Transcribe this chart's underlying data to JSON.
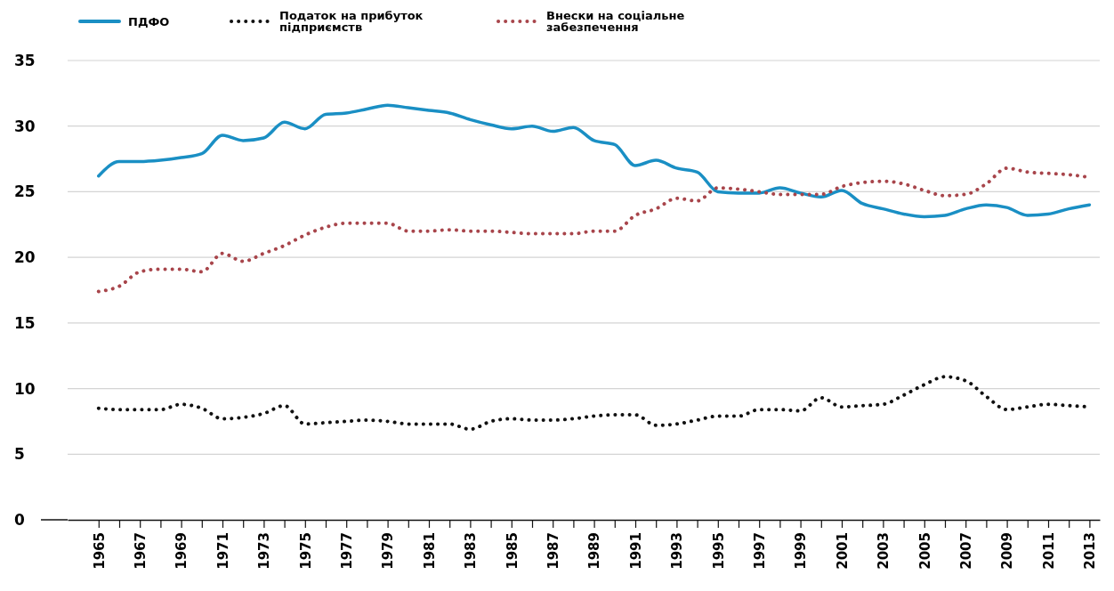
{
  "chart_data": {
    "type": "line",
    "legend": "top left",
    "grid": "y",
    "xlim": [
      1963.5,
      2013.5
    ],
    "xticks": [
      {
        "value": 1965,
        "label": "1965"
      },
      {
        "value": 1966,
        "label": null
      },
      {
        "value": 1967,
        "label": "1967"
      },
      {
        "value": 1968,
        "label": null
      },
      {
        "value": 1969,
        "label": "1969"
      },
      {
        "value": 1970,
        "label": null
      },
      {
        "value": 1971,
        "label": "1971"
      },
      {
        "value": 1972,
        "label": null
      },
      {
        "value": 1973,
        "label": "1973"
      },
      {
        "value": 1974,
        "label": null
      },
      {
        "value": 1975,
        "label": "1975"
      },
      {
        "value": 1976,
        "label": null
      },
      {
        "value": 1977,
        "label": "1977"
      },
      {
        "value": 1978,
        "label": null
      },
      {
        "value": 1979,
        "label": "1979"
      },
      {
        "value": 1980,
        "label": null
      },
      {
        "value": 1981,
        "label": "1981"
      },
      {
        "value": 1982,
        "label": null
      },
      {
        "value": 1983,
        "label": "1983"
      },
      {
        "value": 1984,
        "label": null
      },
      {
        "value": 1985,
        "label": "1985"
      },
      {
        "value": 1986,
        "label": null
      },
      {
        "value": 1987,
        "label": "1987"
      },
      {
        "value": 1988,
        "label": null
      },
      {
        "value": 1989,
        "label": "1989"
      },
      {
        "value": 1990,
        "label": null
      },
      {
        "value": 1991,
        "label": "1991"
      },
      {
        "value": 1992,
        "label": null
      },
      {
        "value": 1993,
        "label": "1993"
      },
      {
        "value": 1994,
        "label": null
      },
      {
        "value": 1995,
        "label": "1995"
      },
      {
        "value": 1996,
        "label": null
      },
      {
        "value": 1997,
        "label": "1997"
      },
      {
        "value": 1998,
        "label": null
      },
      {
        "value": 1999,
        "label": "1999"
      },
      {
        "value": 2000,
        "label": null
      },
      {
        "value": 2001,
        "label": "2001"
      },
      {
        "value": 2002,
        "label": null
      },
      {
        "value": 2003,
        "label": "2003"
      },
      {
        "value": 2004,
        "label": null
      },
      {
        "value": 2005,
        "label": "2005"
      },
      {
        "value": 2006,
        "label": null
      },
      {
        "value": 2007,
        "label": "2007"
      },
      {
        "value": 2008,
        "label": null
      },
      {
        "value": 2009,
        "label": "2009"
      },
      {
        "value": 2010,
        "label": null
      },
      {
        "value": 2011,
        "label": "2011"
      },
      {
        "value": 2012,
        "label": null
      },
      {
        "value": 2013,
        "label": "2013"
      }
    ],
    "ylim": [
      0,
      35
    ],
    "yticks": [
      0,
      5,
      10,
      15,
      20,
      25,
      30,
      35
    ],
    "x": [
      1965,
      1966,
      1967,
      1968,
      1969,
      1970,
      1971,
      1972,
      1973,
      1974,
      1975,
      1976,
      1977,
      1978,
      1979,
      1980,
      1981,
      1982,
      1983,
      1984,
      1985,
      1986,
      1987,
      1988,
      1989,
      1990,
      1991,
      1992,
      1993,
      1994,
      1995,
      1996,
      1997,
      1998,
      1999,
      2000,
      2001,
      2002,
      2003,
      2004,
      2005,
      2006,
      2007,
      2008,
      2009,
      2010,
      2011,
      2012,
      2013
    ],
    "series": [
      {
        "name": "ПДФО",
        "color": "#1a8fc4",
        "line_style": "solid",
        "values": [
          26.2,
          27.3,
          27.3,
          27.4,
          27.6,
          27.9,
          29.3,
          28.9,
          29.1,
          30.3,
          29.8,
          30.9,
          31.0,
          31.3,
          31.6,
          31.4,
          31.2,
          31.0,
          30.5,
          30.1,
          29.8,
          30.0,
          29.6,
          29.9,
          28.9,
          28.6,
          27.0,
          27.4,
          26.8,
          26.5,
          25.0,
          24.9,
          24.9,
          25.3,
          24.9,
          24.6,
          25.1,
          24.1,
          23.7,
          23.3,
          23.1,
          23.2,
          23.7,
          24.0,
          23.8,
          23.2,
          23.3,
          23.7,
          24.0
        ]
      },
      {
        "name": "Податок на прибуток підприємств",
        "color": "#111111",
        "line_style": "dotted",
        "values": [
          8.5,
          8.4,
          8.4,
          8.4,
          8.8,
          8.5,
          7.7,
          7.8,
          8.1,
          8.7,
          7.3,
          7.4,
          7.5,
          7.6,
          7.5,
          7.3,
          7.3,
          7.3,
          6.9,
          7.5,
          7.7,
          7.6,
          7.6,
          7.7,
          7.9,
          8.0,
          8.0,
          7.2,
          7.3,
          7.6,
          7.9,
          7.9,
          8.4,
          8.4,
          8.3,
          9.3,
          8.6,
          8.7,
          8.8,
          9.5,
          10.3,
          10.9,
          10.6,
          9.4,
          8.4,
          8.6,
          8.8,
          8.7,
          8.6
        ]
      },
      {
        "name": "Внески на соціальне забезпечення",
        "color": "#a8454b",
        "line_style": "dotted",
        "values": [
          17.4,
          17.8,
          18.9,
          19.1,
          19.1,
          18.9,
          20.3,
          19.7,
          20.3,
          20.9,
          21.7,
          22.3,
          22.6,
          22.6,
          22.6,
          22.0,
          22.0,
          22.1,
          22.0,
          22.0,
          21.9,
          21.8,
          21.8,
          21.8,
          22.0,
          22.0,
          23.2,
          23.7,
          24.5,
          24.3,
          25.3,
          25.2,
          25.0,
          24.8,
          24.8,
          24.8,
          25.4,
          25.7,
          25.8,
          25.6,
          25.1,
          24.7,
          24.8,
          25.6,
          26.8,
          26.5,
          26.4,
          26.3,
          26.1
        ]
      }
    ]
  }
}
